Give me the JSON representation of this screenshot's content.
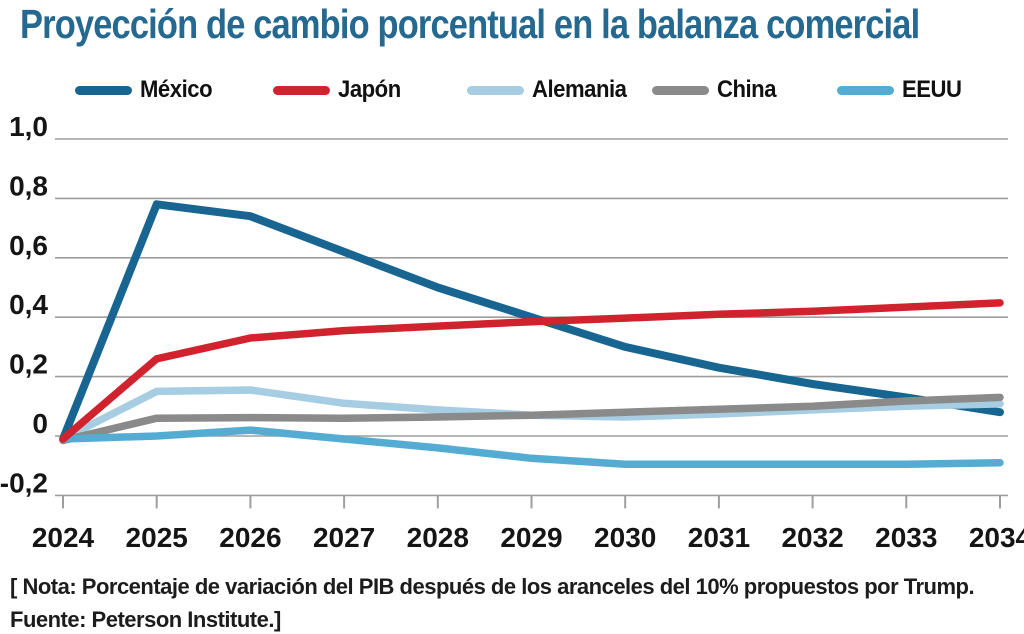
{
  "title": "Proyección de cambio porcentual en la balanza comercial",
  "note": {
    "line1": "[ Nota: Porcentaje de variación del PIB después de los aranceles del 10% propuestos por Trump.",
    "line2": "Fuente: Peterson Institute.]"
  },
  "colors": {
    "title_text": "#256890",
    "grid": "#9e9e9e",
    "axis_text": "#151515",
    "note_text": "#1c1c1c"
  },
  "chart_data": {
    "type": "line",
    "title": "Proyección de cambio porcentual en la balanza comercial",
    "xlabel": "",
    "ylabel": "",
    "x": [
      2024,
      2025,
      2026,
      2027,
      2028,
      2029,
      2030,
      2031,
      2032,
      2033,
      2034
    ],
    "x_tick_labels": [
      "2024",
      "2025",
      "2026",
      "2027",
      "2028",
      "2029",
      "2030",
      "2031",
      "2032",
      "2033",
      "2034"
    ],
    "y_ticks": [
      1.0,
      0.8,
      0.6,
      0.4,
      0.2,
      0.0,
      -0.2
    ],
    "y_tick_labels": [
      "1,0",
      "0,8",
      "0,6",
      "0,4",
      "0,2",
      "0",
      "-0,2"
    ],
    "ylim": [
      -0.2,
      1.0
    ],
    "grid": true,
    "legend_position": "top",
    "series": [
      {
        "name": "México",
        "color": "#176590",
        "values": [
          -0.01,
          0.78,
          0.74,
          0.62,
          0.5,
          0.4,
          0.3,
          0.23,
          0.175,
          0.13,
          0.08
        ]
      },
      {
        "name": "Japón",
        "color": "#d0232e",
        "values": [
          -0.01,
          0.26,
          0.33,
          0.355,
          0.37,
          0.385,
          0.397,
          0.41,
          0.42,
          0.434,
          0.448
        ]
      },
      {
        "name": "Alemania",
        "color": "#a6cde2",
        "values": [
          -0.01,
          0.15,
          0.155,
          0.11,
          0.088,
          0.07,
          0.064,
          0.074,
          0.088,
          0.1,
          0.108
        ]
      },
      {
        "name": "China",
        "color": "#8a8a8a",
        "values": [
          -0.015,
          0.06,
          0.062,
          0.06,
          0.064,
          0.07,
          0.08,
          0.09,
          0.1,
          0.118,
          0.13
        ]
      },
      {
        "name": "EEUU",
        "color": "#55acd2",
        "values": [
          -0.01,
          0.0,
          0.02,
          -0.01,
          -0.04,
          -0.075,
          -0.095,
          -0.095,
          -0.095,
          -0.095,
          -0.09
        ]
      }
    ]
  }
}
